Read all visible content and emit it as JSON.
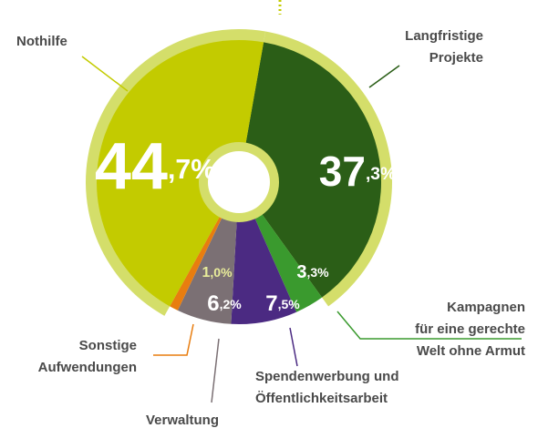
{
  "chart_data": {
    "type": "donut",
    "categories": [
      "Langfristige\nProjekte",
      "Kampagnen\nfür eine gerechte\nWelt ohne Armut",
      "Spendenwerbung und\nÖffentlichkeitsarbeit",
      "Verwaltung",
      "Sonstige\nAufwendungen",
      "Nothilfe"
    ],
    "values": [
      37.3,
      3.3,
      7.5,
      6.2,
      1.0,
      44.7
    ],
    "value_labels": [
      "37,3%",
      "3,3%",
      "7,5%",
      "6,2%",
      "1,0%",
      "44,7%"
    ],
    "colors": [
      "#2b5e17",
      "#3a9a2e",
      "#4b2a82",
      "#7b7074",
      "#e87d0f",
      "#c3cb00"
    ]
  }
}
